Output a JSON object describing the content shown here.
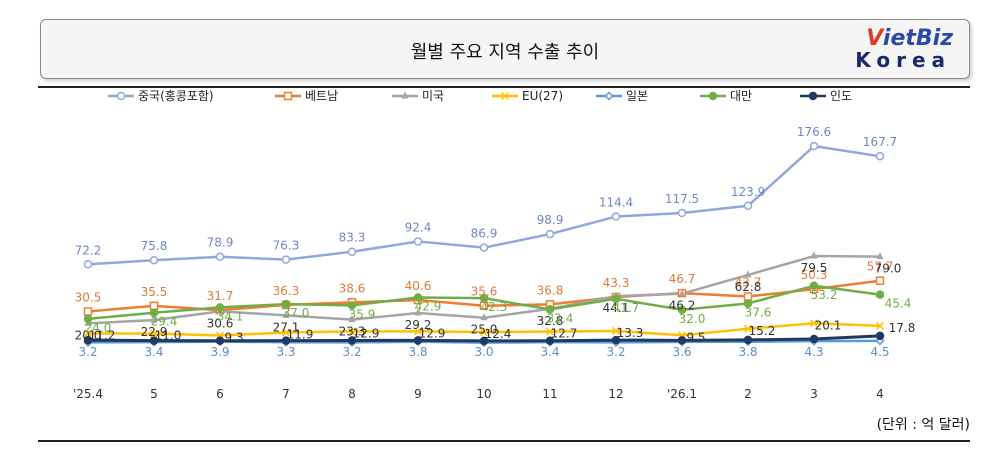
{
  "title": "월별 주요 지역 수출 추이",
  "logo": {
    "top_v": "V",
    "top_rest": "ietBiz",
    "bottom": "Korea"
  },
  "unit_note": "(단위 : 억 달러)",
  "chart_data": {
    "type": "line",
    "title": "월별 주요 지역 수출 추이",
    "xlabel": "",
    "ylabel": "",
    "categories": [
      "'25.4",
      "5",
      "6",
      "7",
      "8",
      "9",
      "10",
      "11",
      "12",
      "'26.1",
      "2",
      "3",
      "4"
    ],
    "ylim": [
      0,
      190
    ],
    "grid": false,
    "legend_position": "top",
    "series": [
      {
        "name": "중국(홍콩포함)",
        "color": "#8fa8dc",
        "marker": "circle",
        "values": [
          72.2,
          75.8,
          78.9,
          76.3,
          83.3,
          92.4,
          86.9,
          98.9,
          114.4,
          117.5,
          123.9,
          176.6,
          167.7
        ],
        "labels": [
          "72.2",
          "75.8",
          "78.9",
          "76.3",
          "83.3",
          "92.4",
          "86.9",
          "98.9",
          "114.4",
          "117.5",
          "123.9",
          "176.6",
          "167.7"
        ]
      },
      {
        "name": "베트남",
        "color": "#ed7d31",
        "marker": "square",
        "values": [
          30.5,
          35.5,
          31.7,
          36.3,
          38.6,
          40.6,
          35.6,
          36.8,
          43.3,
          46.7,
          43.7,
          50.3,
          57.7
        ],
        "labels": [
          "30.5",
          "35.5",
          "31.7",
          "36.3",
          "38.6",
          "40.6",
          "35.6",
          "36.8",
          "43.3",
          "46.7",
          "43.7",
          "50.3",
          "57.7"
        ]
      },
      {
        "name": "미국",
        "color": "#a5a5a5",
        "marker": "triangle",
        "values": [
          20.0,
          22.9,
          30.6,
          27.1,
          23.3,
          29.2,
          25.0,
          32.8,
          44.1,
          46.2,
          62.8,
          79.5,
          79.0
        ],
        "labels": [
          "20.0",
          "22.9",
          "30.6",
          "27.1",
          "23.3",
          "29.2",
          "25.0",
          "32.8",
          "44.1",
          "46.2",
          "62.8",
          "79.5",
          "79.0"
        ]
      },
      {
        "name": "EU(27)",
        "color": "#ffc000",
        "marker": "x",
        "values": [
          11.2,
          11.0,
          9.3,
          11.9,
          12.9,
          12.9,
          12.4,
          12.7,
          13.3,
          9.5,
          15.2,
          20.1,
          17.8
        ],
        "labels": [
          "11.2",
          "11.0",
          "9.3",
          "11.9",
          "12.9",
          "12.9",
          "12.4",
          "12.7",
          "13.3",
          "9.5",
          "15.2",
          "20.1",
          "17.8"
        ]
      },
      {
        "name": "일본",
        "color": "#5b9bd5",
        "marker": "diamond",
        "values": [
          3.2,
          3.4,
          3.9,
          3.3,
          3.2,
          3.8,
          3.0,
          3.4,
          3.2,
          3.6,
          3.8,
          4.3,
          4.5
        ],
        "labels": [
          "3.2",
          "3.4",
          "3.9",
          "3.3",
          "3.2",
          "3.8",
          "3.0",
          "3.4",
          "3.2",
          "3.6",
          "3.8",
          "4.3",
          "4.5"
        ]
      },
      {
        "name": "대만",
        "color": "#70ad47",
        "marker": "circle",
        "values": [
          24.0,
          29.4,
          34.1,
          37.0,
          35.9,
          42.9,
          42.3,
          32.4,
          41.7,
          32.0,
          37.6,
          53.2,
          45.4
        ],
        "labels": [
          "24.0",
          "29.4",
          "34.1",
          "37.0",
          "35.9",
          "42.9",
          "42.3",
          "32.4",
          "41.7",
          "32.0",
          "37.6",
          "53.2",
          "45.4"
        ]
      },
      {
        "name": "인도",
        "color": "#1f3864",
        "marker": "circle",
        "values": [
          5.1,
          4.8,
          4.6,
          4.7,
          4.9,
          5.0,
          4.5,
          4.6,
          5.2,
          5.0,
          5.4,
          6.2,
          8.9
        ],
        "labels": []
      }
    ]
  }
}
